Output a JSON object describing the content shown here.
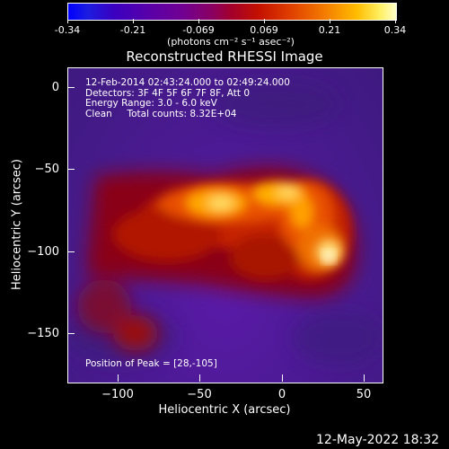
{
  "colorbar": {
    "tick_labels": [
      "-0.34",
      "-0.21",
      "-0.069",
      "0.069",
      "0.21",
      "0.34"
    ],
    "units": "(photons cm⁻² s⁻¹ asec⁻²)"
  },
  "plot": {
    "title": "Reconstructed RHESSI Image",
    "xlabel": "Heliocentric X (arcsec)",
    "ylabel": "Heliocentric Y (arcsec)",
    "x_tick_labels": [
      "−100",
      "−50",
      "0",
      "50"
    ],
    "y_tick_labels": [
      "0",
      "−50",
      "−100",
      "−150"
    ],
    "info_lines": [
      "12-Feb-2014 02:43:24.000 to 02:49:24.000",
      "Detectors: 3F 4F 5F 6F 7F 8F, Att 0",
      "Energy Range: 3.0 - 6.0 keV",
      "Clean     Total counts: 8.32E+04"
    ],
    "peak_text": "Position of Peak = [28,-105]"
  },
  "footer": {
    "date": "12-May-2022 18:32"
  },
  "colors": {
    "background": "#000000",
    "text": "#ffffff",
    "low": "#4a1a90",
    "high": "#ffffe0"
  }
}
